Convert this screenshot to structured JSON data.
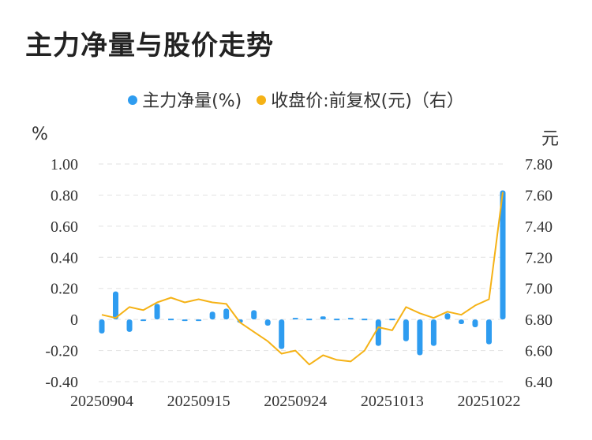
{
  "title": "主力净量与股价走势",
  "legend": {
    "bar_label": "主力净量(%)",
    "line_label": "收盘价:前复权(元)（右）"
  },
  "units": {
    "left": "%",
    "right": "元"
  },
  "colors": {
    "bar": "#2e9cf0",
    "line": "#f5b216",
    "grid": "#e2e2e2"
  },
  "chart_data": {
    "type": "bar",
    "title": "主力净量与股价走势",
    "x_tick_labels": [
      "20250904",
      "20250915",
      "20250924",
      "20251013",
      "20251022"
    ],
    "left_axis": {
      "unit": "%",
      "ylim": [
        -0.4,
        1.0
      ],
      "ticks": [
        "1.00",
        "0.80",
        "0.60",
        "0.40",
        "0.20",
        "0",
        "-0.20",
        "-0.40"
      ]
    },
    "right_axis": {
      "unit": "元",
      "ylim": [
        6.4,
        7.8
      ],
      "ticks": [
        "7.80",
        "7.60",
        "7.40",
        "7.20",
        "7.00",
        "6.80",
        "6.60",
        "6.40"
      ]
    },
    "grid": true,
    "legend_position": "top-center",
    "series": [
      {
        "name": "主力净量(%)",
        "type": "bar",
        "values": [
          -0.09,
          0.18,
          -0.08,
          -0.01,
          0.1,
          0.0,
          -0.01,
          -0.01,
          0.05,
          0.07,
          -0.02,
          0.06,
          -0.04,
          -0.19,
          0.01,
          0.0,
          0.02,
          0.0,
          0.01,
          0.0,
          -0.17,
          0.0,
          -0.14,
          -0.23,
          -0.17,
          0.04,
          -0.03,
          -0.05,
          -0.16,
          0.83
        ]
      },
      {
        "name": "收盘价:前复权(元)（右）",
        "type": "line",
        "values": [
          6.83,
          6.81,
          6.88,
          6.86,
          6.91,
          6.94,
          6.91,
          6.93,
          6.91,
          6.9,
          6.78,
          6.72,
          6.66,
          6.58,
          6.6,
          6.51,
          6.57,
          6.54,
          6.53,
          6.6,
          6.75,
          6.73,
          6.88,
          6.84,
          6.81,
          6.85,
          6.83,
          6.89,
          6.93,
          7.62
        ]
      }
    ]
  }
}
